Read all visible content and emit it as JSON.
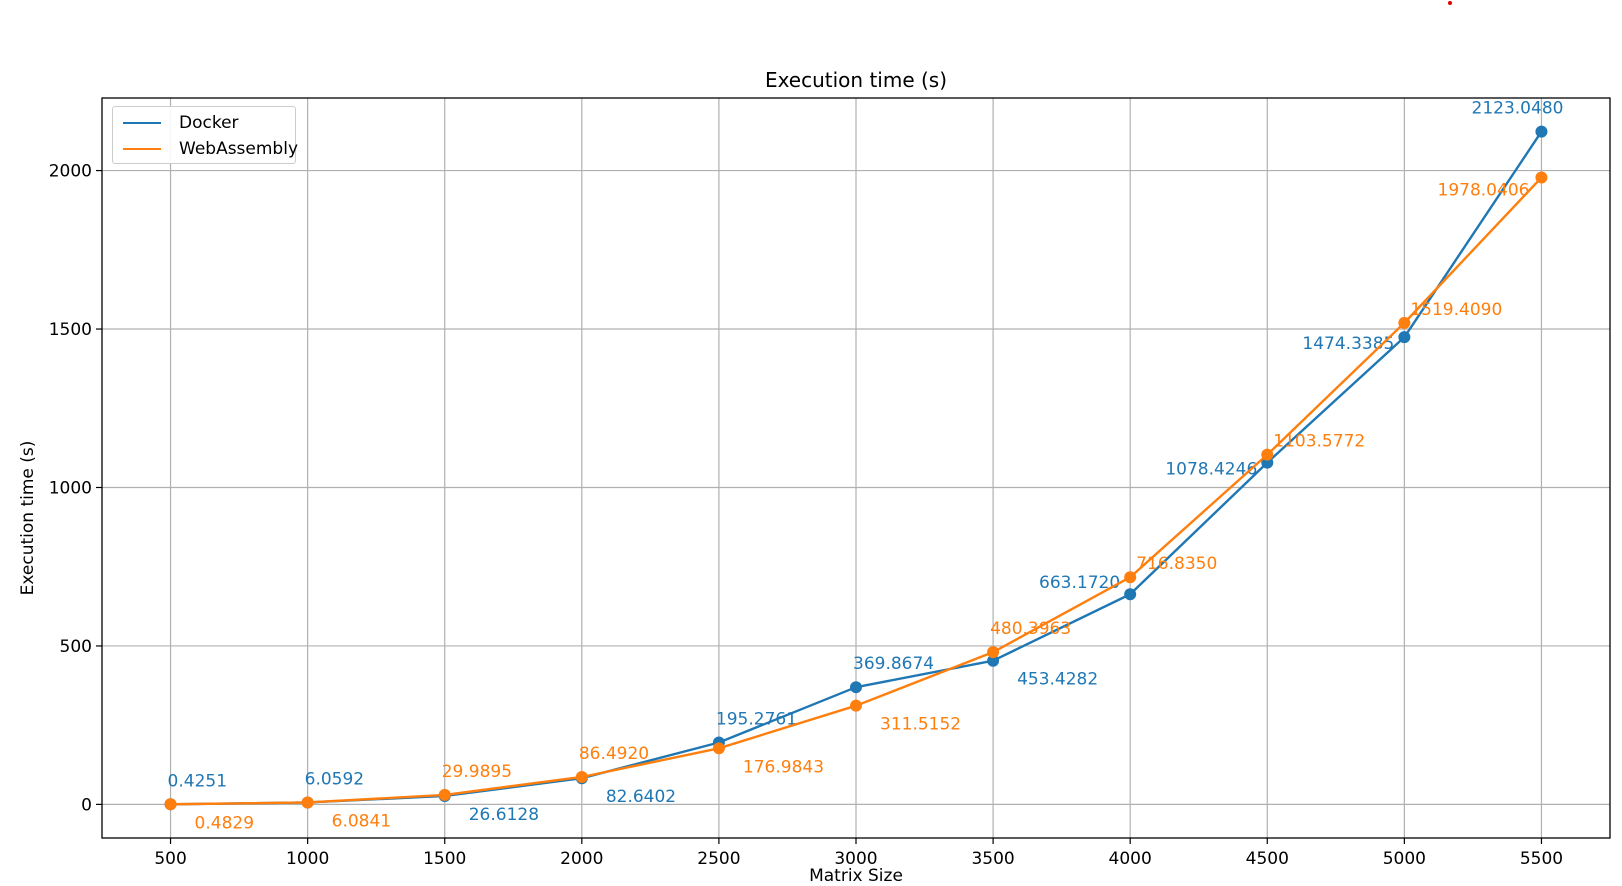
{
  "chart_data": {
    "type": "line",
    "title": "Execution time (s)",
    "xlabel": "Matrix Size",
    "ylabel": "Execution time (s)",
    "x": [
      500,
      1000,
      1500,
      2000,
      2500,
      3000,
      3500,
      4000,
      4500,
      5000,
      5500
    ],
    "x_ticks": [
      500,
      1000,
      1500,
      2000,
      2500,
      3000,
      3500,
      4000,
      4500,
      5000,
      5500
    ],
    "y_ticks": [
      0,
      500,
      1000,
      1500,
      2000
    ],
    "xlim": [
      250,
      5750
    ],
    "ylim": [
      -106,
      2229
    ],
    "grid": true,
    "legend_position": "upper left",
    "series": [
      {
        "name": "Docker",
        "color": "#1f77b4",
        "values": [
          0.4251,
          6.0592,
          26.6128,
          82.6402,
          195.2761,
          369.8674,
          453.4282,
          663.172,
          1078.4246,
          1474.3385,
          2123.048
        ],
        "labels": [
          "0.4251",
          "6.0592",
          "26.6128",
          "82.6402",
          "195.2761",
          "369.8674",
          "453.4282",
          "663.1720",
          "1078.4246",
          "1474.3385",
          "2123.0480"
        ]
      },
      {
        "name": "WebAssembly",
        "color": "#ff7f0e",
        "values": [
          0.4829,
          6.0841,
          29.9895,
          86.492,
          176.9843,
          311.5152,
          480.3963,
          716.835,
          1103.5772,
          1519.409,
          1978.0406
        ],
        "labels": [
          "0.4829",
          "6.0841",
          "29.9895",
          "86.4920",
          "176.9843",
          "311.5152",
          "480.3963",
          "716.8350",
          "1103.5772",
          "1519.4090",
          "1978.0406"
        ]
      }
    ]
  },
  "legend": {
    "items": [
      {
        "label": "Docker",
        "color": "#1f77b4"
      },
      {
        "label": "WebAssembly",
        "color": "#ff7f0e"
      }
    ]
  }
}
